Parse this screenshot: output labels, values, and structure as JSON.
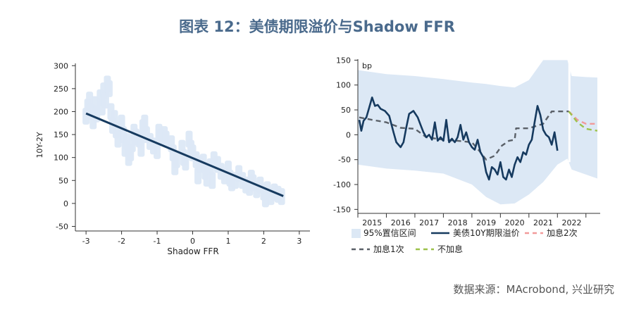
{
  "figure": {
    "title": "图表 12：美债期限溢价与Shadow FFR",
    "source": "数据来源：MAcrobond, 兴业研究"
  },
  "colors": {
    "band": "#dce8f5",
    "line": "#163a5f",
    "dash_grey": "#5a6068",
    "dash_pink": "#f19a9a",
    "dash_green": "#9cc24a",
    "title": "#4a6a8c"
  },
  "chart_data": [
    {
      "type": "scatter",
      "xlabel": "Shadow FFR",
      "ylabel": "10Y-2Y",
      "xlim": [
        -3.3,
        3.3
      ],
      "ylim": [
        -60,
        305
      ],
      "x_ticks": [
        "-3",
        "-2",
        "-1",
        "0",
        "1",
        "2",
        "3"
      ],
      "y_ticks": [
        "300",
        "250",
        "200",
        "150",
        "100",
        "50",
        "0",
        "-50"
      ],
      "points": [
        [
          -3.0,
          190
        ],
        [
          -2.95,
          210
        ],
        [
          -2.9,
          225
        ],
        [
          -2.85,
          200
        ],
        [
          -2.8,
          180
        ],
        [
          -2.75,
          215
        ],
        [
          -2.7,
          195
        ],
        [
          -2.6,
          230
        ],
        [
          -2.55,
          210
        ],
        [
          -2.5,
          245
        ],
        [
          -2.45,
          225
        ],
        [
          -2.4,
          260
        ],
        [
          -2.35,
          250
        ],
        [
          -2.3,
          200
        ],
        [
          -2.25,
          170
        ],
        [
          -2.2,
          185
        ],
        [
          -2.15,
          160
        ],
        [
          -2.1,
          140
        ],
        [
          -2.0,
          175
        ],
        [
          -1.95,
          150
        ],
        [
          -1.9,
          120
        ],
        [
          -1.85,
          135
        ],
        [
          -1.8,
          100
        ],
        [
          -1.75,
          110
        ],
        [
          -1.7,
          130
        ],
        [
          -1.65,
          155
        ],
        [
          -1.6,
          145
        ],
        [
          -1.5,
          140
        ],
        [
          -1.45,
          120
        ],
        [
          -1.4,
          165
        ],
        [
          -1.35,
          175
        ],
        [
          -1.3,
          150
        ],
        [
          -1.2,
          135
        ],
        [
          -1.1,
          125
        ],
        [
          -1.0,
          115
        ],
        [
          -0.95,
          155
        ],
        [
          -0.9,
          145
        ],
        [
          -0.8,
          150
        ],
        [
          -0.75,
          140
        ],
        [
          -0.6,
          130
        ],
        [
          -0.55,
          110
        ],
        [
          -0.5,
          80
        ],
        [
          -0.45,
          95
        ],
        [
          -0.3,
          120
        ],
        [
          -0.25,
          100
        ],
        [
          -0.2,
          90
        ],
        [
          -0.1,
          140
        ],
        [
          -0.05,
          120
        ],
        [
          0.0,
          110
        ],
        [
          0.1,
          95
        ],
        [
          0.15,
          60
        ],
        [
          0.2,
          85
        ],
        [
          0.3,
          90
        ],
        [
          0.35,
          70
        ],
        [
          0.4,
          55
        ],
        [
          0.5,
          80
        ],
        [
          0.55,
          50
        ],
        [
          0.6,
          95
        ],
        [
          0.7,
          85
        ],
        [
          0.8,
          70
        ],
        [
          0.9,
          60
        ],
        [
          1.0,
          75
        ],
        [
          1.05,
          55
        ],
        [
          1.1,
          45
        ],
        [
          1.2,
          50
        ],
        [
          1.3,
          65
        ],
        [
          1.4,
          50
        ],
        [
          1.5,
          40
        ],
        [
          1.6,
          35
        ],
        [
          1.65,
          55
        ],
        [
          1.7,
          45
        ],
        [
          1.8,
          30
        ],
        [
          1.9,
          40
        ],
        [
          2.0,
          25
        ],
        [
          2.05,
          10
        ],
        [
          2.1,
          30
        ],
        [
          2.2,
          15
        ],
        [
          2.3,
          25
        ],
        [
          2.4,
          20
        ],
        [
          2.5,
          15
        ]
      ],
      "fit_line": {
        "x": [
          -3.0,
          2.55
        ],
        "y": [
          196,
          16
        ]
      }
    },
    {
      "type": "line",
      "ylabel": "bp",
      "xlim": [
        2014.5,
        2023.0
      ],
      "ylim": [
        -158,
        152
      ],
      "x_ticks": [
        "2015",
        "2016",
        "2017",
        "2018",
        "2019",
        "2020",
        "2021",
        "2022"
      ],
      "y_ticks": [
        "150",
        "100",
        "50",
        "0",
        "-50",
        "-100",
        "-150"
      ],
      "legend": [
        {
          "label": "95%置信区间",
          "kind": "band"
        },
        {
          "label": "美债10Y期限溢价",
          "kind": "solid"
        },
        {
          "label": "加息2次",
          "kind": "dash_pink"
        },
        {
          "label": "加息1次",
          "kind": "dash_grey"
        },
        {
          "label": "不加息",
          "kind": "dash_green"
        }
      ],
      "band": {
        "x": [
          2014.5,
          2015.5,
          2016.5,
          2017.5,
          2018.5,
          2019.0,
          2019.5,
          2020.0,
          2020.5,
          2021.0,
          2021.5,
          2021.85,
          2022.0,
          2022.5,
          2022.9
        ],
        "upper": [
          130,
          122,
          118,
          112,
          105,
          102,
          98,
          95,
          110,
          150,
          150,
          150,
          118,
          116,
          115
        ],
        "lower": [
          -60,
          -68,
          -72,
          -78,
          -100,
          -125,
          -140,
          -138,
          -120,
          -95,
          -60,
          -48,
          -70,
          -80,
          -88
        ]
      },
      "series": [
        {
          "name": "美债10Y期限溢价",
          "style": "solid",
          "x": [
            2014.55,
            2014.62,
            2014.7,
            2014.8,
            2014.9,
            2015.0,
            2015.1,
            2015.2,
            2015.3,
            2015.45,
            2015.6,
            2015.75,
            2015.85,
            2016.0,
            2016.1,
            2016.2,
            2016.3,
            2016.45,
            2016.6,
            2016.7,
            2016.8,
            2016.9,
            2017.0,
            2017.1,
            2017.2,
            2017.3,
            2017.4,
            2017.5,
            2017.6,
            2017.7,
            2017.8,
            2017.9,
            2018.0,
            2018.1,
            2018.2,
            2018.3,
            2018.4,
            2018.5,
            2018.6,
            2018.7,
            2018.8,
            2018.9,
            2019.0,
            2019.1,
            2019.2,
            2019.3,
            2019.4,
            2019.5,
            2019.6,
            2019.7,
            2019.8,
            2019.9,
            2020.0,
            2020.1,
            2020.2,
            2020.3,
            2020.4,
            2020.5,
            2020.6,
            2020.7,
            2020.8,
            2020.9,
            2021.0,
            2021.1,
            2021.2,
            2021.3,
            2021.4,
            2021.5
          ],
          "y": [
            30,
            8,
            28,
            35,
            55,
            75,
            58,
            60,
            52,
            48,
            38,
            5,
            -15,
            -25,
            -15,
            15,
            42,
            48,
            35,
            20,
            5,
            -5,
            0,
            -10,
            25,
            -12,
            -5,
            -12,
            30,
            -15,
            -8,
            -15,
            -5,
            20,
            -10,
            5,
            -15,
            -25,
            -30,
            -10,
            -35,
            -45,
            -75,
            -90,
            -65,
            -70,
            -80,
            -55,
            -85,
            -90,
            -70,
            -85,
            -60,
            -45,
            -55,
            -35,
            -40,
            -20,
            -10,
            25,
            58,
            40,
            10,
            0,
            -5,
            -20,
            5,
            -32
          ]
        },
        {
          "name": "加息1次",
          "style": "dash_grey",
          "x": [
            2014.55,
            2015.0,
            2015.5,
            2016.0,
            2016.5,
            2016.9,
            2017.5,
            2018.0,
            2018.5,
            2018.8,
            2019.0,
            2019.3,
            2019.55,
            2019.8,
            2020.0,
            2020.05,
            2020.5,
            2021.0,
            2021.3,
            2021.6,
            2021.9
          ],
          "y": [
            35,
            30,
            25,
            14,
            12,
            -5,
            -10,
            -12,
            -15,
            -35,
            -50,
            -42,
            -22,
            -12,
            -10,
            13,
            13,
            22,
            47,
            47,
            47
          ]
        },
        {
          "name": "加息2次",
          "style": "dash_pink",
          "x": [
            2021.9,
            2022.2,
            2022.5,
            2022.9
          ],
          "y": [
            47,
            30,
            22,
            22
          ]
        },
        {
          "name": "不加息",
          "style": "dash_green",
          "x": [
            2021.9,
            2022.2,
            2022.5,
            2022.9
          ],
          "y": [
            47,
            25,
            12,
            8
          ]
        }
      ]
    }
  ]
}
